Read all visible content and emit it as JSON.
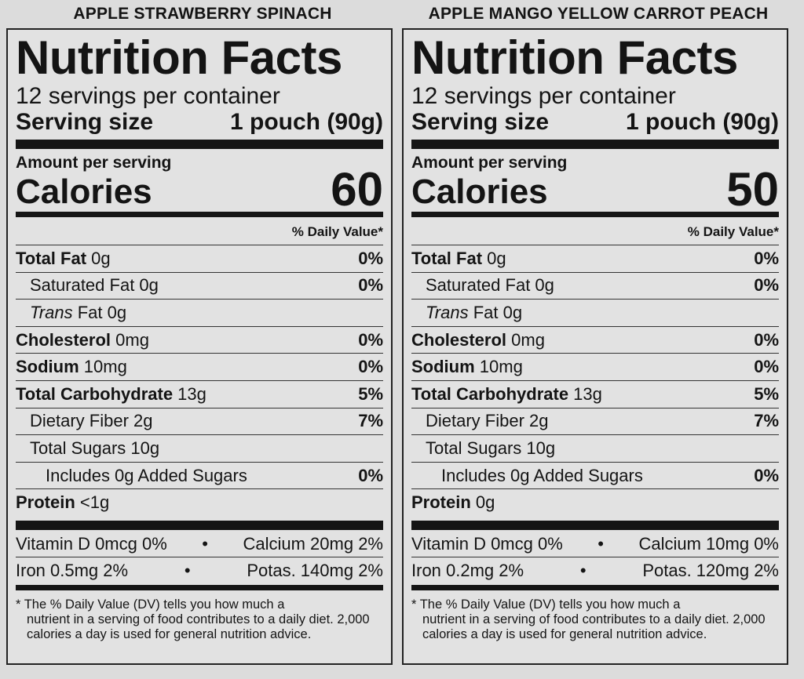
{
  "labels": [
    {
      "product": "APPLE STRAWBERRY SPINACH",
      "title": "Nutrition Facts",
      "servings": "12 servings per container",
      "serving_size_label": "Serving size",
      "serving_size_value": "1 pouch (90g)",
      "amount_per_serving": "Amount per serving",
      "calories_label": "Calories",
      "calories_value": "60",
      "dv_header": "% Daily Value*",
      "rows": [
        {
          "bold": "Total Fat",
          "rest": " 0g",
          "italic": "",
          "pct": "0%"
        },
        {
          "bold": "",
          "rest": "Saturated Fat 0g",
          "italic": "",
          "pct": "0%"
        },
        {
          "bold": "",
          "rest": " Fat 0g",
          "italic": "Trans",
          "pct": ""
        },
        {
          "bold": "Cholesterol",
          "rest": " 0mg",
          "italic": "",
          "pct": "0%"
        },
        {
          "bold": "Sodium",
          "rest": " 10mg",
          "italic": "",
          "pct": "0%"
        },
        {
          "bold": "Total Carbohydrate",
          "rest": " 13g",
          "italic": "",
          "pct": "5%"
        },
        {
          "bold": "",
          "rest": "Dietary Fiber 2g",
          "italic": "",
          "pct": "7%"
        },
        {
          "bold": "",
          "rest": "Total Sugars 10g",
          "italic": "",
          "pct": ""
        },
        {
          "bold": "",
          "rest": "Includes 0g Added Sugars",
          "italic": "",
          "pct": "0%"
        },
        {
          "bold": "Protein",
          "rest": " <1g",
          "italic": "",
          "pct": ""
        }
      ],
      "vitamins": [
        {
          "left": "Vitamin D 0mcg 0%",
          "dot": "•",
          "right": "Calcium 20mg 2%"
        },
        {
          "left": "Iron 0.5mg 2%",
          "dot": "•",
          "right": "Potas. 140mg 2%"
        }
      ],
      "footnote_first": "* The % Daily Value (DV) tells you how much a",
      "footnote_rest": "nutrient in a serving of food contributes to a daily diet. 2,000 calories a day is used for general nutrition advice."
    },
    {
      "product": "APPLE MANGO YELLOW CARROT PEACH",
      "title": "Nutrition Facts",
      "servings": "12 servings per container",
      "serving_size_label": "Serving size",
      "serving_size_value": "1 pouch (90g)",
      "amount_per_serving": "Amount per serving",
      "calories_label": "Calories",
      "calories_value": "50",
      "dv_header": "% Daily Value*",
      "rows": [
        {
          "bold": "Total Fat",
          "rest": " 0g",
          "italic": "",
          "pct": "0%"
        },
        {
          "bold": "",
          "rest": "Saturated Fat 0g",
          "italic": "",
          "pct": "0%"
        },
        {
          "bold": "",
          "rest": " Fat 0g",
          "italic": "Trans",
          "pct": ""
        },
        {
          "bold": "Cholesterol",
          "rest": " 0mg",
          "italic": "",
          "pct": "0%"
        },
        {
          "bold": "Sodium",
          "rest": " 10mg",
          "italic": "",
          "pct": "0%"
        },
        {
          "bold": "Total Carbohydrate",
          "rest": " 13g",
          "italic": "",
          "pct": "5%"
        },
        {
          "bold": "",
          "rest": "Dietary Fiber 2g",
          "italic": "",
          "pct": "7%"
        },
        {
          "bold": "",
          "rest": "Total Sugars 10g",
          "italic": "",
          "pct": ""
        },
        {
          "bold": "",
          "rest": "Includes 0g Added Sugars",
          "italic": "",
          "pct": "0%"
        },
        {
          "bold": "Protein",
          "rest": " 0g",
          "italic": "",
          "pct": ""
        }
      ],
      "vitamins": [
        {
          "left": "Vitamin D 0mcg 0%",
          "dot": "•",
          "right": "Calcium 10mg 0%"
        },
        {
          "left": "Iron 0.2mg 2%",
          "dot": "•",
          "right": "Potas. 120mg 2%"
        }
      ],
      "footnote_first": "* The % Daily Value (DV) tells you how much a",
      "footnote_rest": "nutrient in a serving of food contributes to a daily diet. 2,000 calories a day is used for general nutrition advice."
    }
  ]
}
